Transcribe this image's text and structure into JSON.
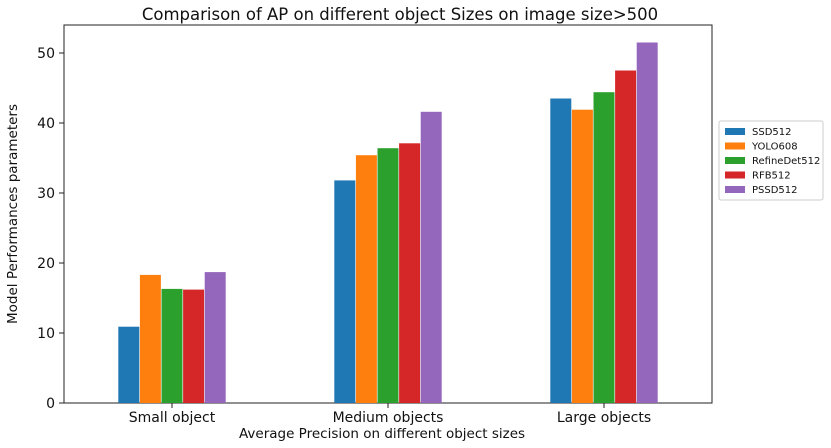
{
  "chart_data": {
    "type": "bar",
    "title": "Comparison of AP on different object Sizes on image size>500",
    "xlabel": "Average Precision on different object sizes",
    "ylabel": "Model Performances parameters",
    "categories": [
      "Small object",
      "Medium objects",
      "Large objects"
    ],
    "series": [
      {
        "name": "SSD512",
        "color": "#1f77b4",
        "values": [
          10.9,
          31.8,
          43.5
        ]
      },
      {
        "name": "YOLO608",
        "color": "#ff7f0e",
        "values": [
          18.3,
          35.4,
          41.9
        ]
      },
      {
        "name": "RefineDet512",
        "color": "#2ca02c",
        "values": [
          16.3,
          36.4,
          44.4
        ]
      },
      {
        "name": "RFB512",
        "color": "#d62728",
        "values": [
          16.2,
          37.1,
          47.5
        ]
      },
      {
        "name": "PSSD512",
        "color": "#9467bd",
        "values": [
          18.7,
          41.6,
          51.5
        ]
      }
    ],
    "ylim": [
      0,
      54
    ],
    "yticks": [
      0,
      10,
      20,
      30,
      40,
      50
    ],
    "grid": false,
    "legend_position": "right"
  }
}
